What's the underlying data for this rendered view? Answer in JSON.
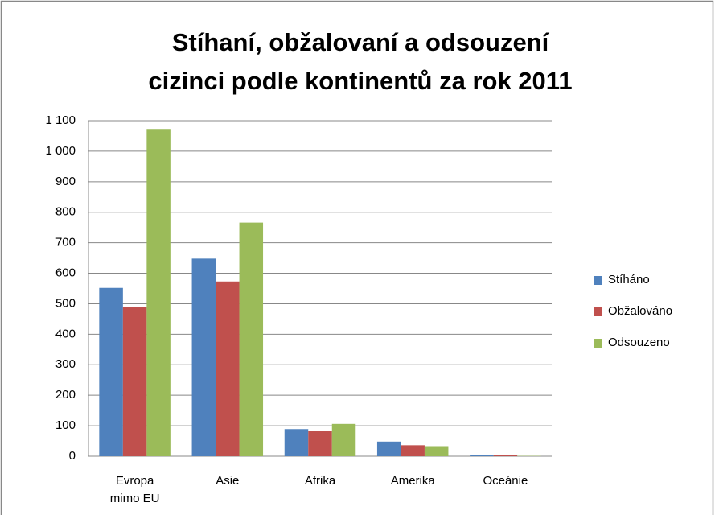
{
  "chart_data": {
    "type": "bar",
    "title": "Stíhaní, obžalovaní a odsouzení\ncizinci podle kontinentů za rok 2011",
    "categories": [
      "Evropa\nmimo EU",
      "Asie",
      "Afrika",
      "Amerika",
      "Oceánie"
    ],
    "series": [
      {
        "name": "Stíháno",
        "color": "#4f81bd",
        "values": [
          552,
          648,
          89,
          48,
          3
        ]
      },
      {
        "name": "Obžalováno",
        "color": "#c0504d",
        "values": [
          488,
          573,
          83,
          36,
          3
        ]
      },
      {
        "name": "Odsouzeno",
        "color": "#9bbb59",
        "values": [
          1073,
          766,
          106,
          33,
          1
        ]
      }
    ],
    "ylim": [
      0,
      1100
    ],
    "yticks": [
      0,
      100,
      200,
      300,
      400,
      500,
      600,
      700,
      800,
      900,
      {
        "value": 1000,
        "label": "1 000"
      },
      {
        "value": 1100,
        "label": "1 100"
      }
    ],
    "grid": true,
    "legend": "right"
  }
}
